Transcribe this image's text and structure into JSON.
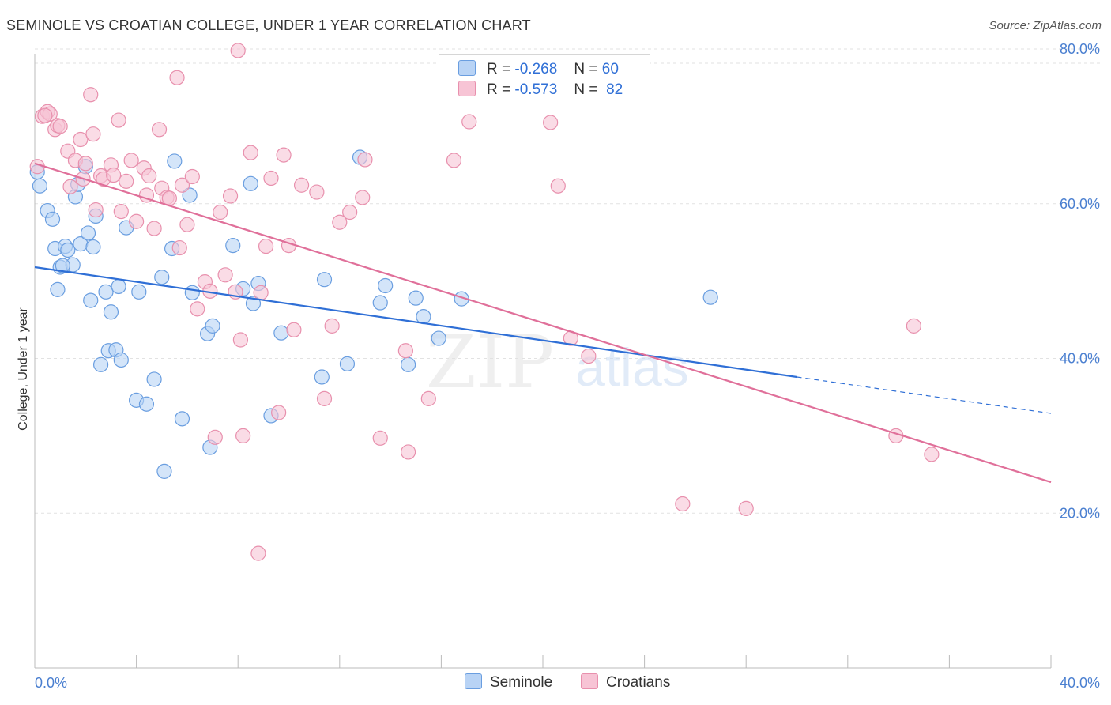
{
  "title": "SEMINOLE VS CROATIAN COLLEGE, UNDER 1 YEAR CORRELATION CHART",
  "source": "Source: ZipAtlas.com",
  "watermark": {
    "zip": "ZIP",
    "atlas": "atlas"
  },
  "colors": {
    "seminole_fill": "#b8d3f5",
    "seminole_stroke": "#6a9ee0",
    "seminole_line": "#2f6fd6",
    "croatians_fill": "#f7c4d5",
    "croatians_stroke": "#e890ad",
    "croatians_line": "#e0709a",
    "grid": "#e2e2e2",
    "tick_text": "#4a7fd0"
  },
  "legend": {
    "rows": [
      {
        "r_label": "R =",
        "r_value": "-0.268",
        "n_label": "N =",
        "n_value": "60"
      },
      {
        "r_label": "R =",
        "r_value": "-0.573",
        "n_label": "N =",
        "n_value": "82"
      }
    ]
  },
  "bottom_legend": [
    "Seminole",
    "Croatians"
  ],
  "chart_data": {
    "type": "scatter",
    "ylabel": "College, Under 1 year",
    "xlim": [
      0,
      40
    ],
    "ylim": [
      0,
      80
    ],
    "x_tick_labels": [
      "0.0%",
      "40.0%"
    ],
    "y_ticks": [
      20,
      40,
      60,
      80
    ],
    "y_tick_labels": [
      "20.0%",
      "40.0%",
      "60.0%",
      "80.0%"
    ],
    "grid": true,
    "legend_position": "top-center",
    "series": [
      {
        "name": "Seminole",
        "points": [
          [
            0.2,
            62.3
          ],
          [
            0.5,
            59.1
          ],
          [
            0.7,
            58.0
          ],
          [
            0.8,
            54.2
          ],
          [
            0.9,
            48.9
          ],
          [
            1.0,
            51.8
          ],
          [
            1.2,
            54.5
          ],
          [
            1.3,
            54.0
          ],
          [
            1.5,
            52.1
          ],
          [
            1.6,
            60.9
          ],
          [
            1.7,
            62.5
          ],
          [
            1.8,
            54.8
          ],
          [
            2.0,
            64.8
          ],
          [
            2.1,
            56.2
          ],
          [
            2.2,
            47.5
          ],
          [
            2.3,
            54.4
          ],
          [
            2.4,
            58.4
          ],
          [
            2.6,
            39.2
          ],
          [
            2.8,
            48.6
          ],
          [
            2.9,
            41.0
          ],
          [
            3.0,
            46.0
          ],
          [
            3.2,
            41.1
          ],
          [
            3.3,
            49.3
          ],
          [
            3.4,
            39.8
          ],
          [
            3.6,
            56.9
          ],
          [
            4.0,
            34.6
          ],
          [
            4.1,
            48.6
          ],
          [
            4.4,
            34.1
          ],
          [
            4.7,
            37.3
          ],
          [
            5.0,
            50.5
          ],
          [
            5.1,
            25.4
          ],
          [
            5.4,
            54.2
          ],
          [
            5.5,
            65.5
          ],
          [
            5.8,
            32.2
          ],
          [
            6.1,
            61.1
          ],
          [
            6.2,
            48.5
          ],
          [
            6.8,
            43.2
          ],
          [
            6.9,
            28.5
          ],
          [
            7.0,
            44.2
          ],
          [
            7.8,
            54.6
          ],
          [
            8.2,
            49.0
          ],
          [
            8.5,
            62.6
          ],
          [
            8.6,
            47.1
          ],
          [
            8.8,
            49.7
          ],
          [
            9.3,
            32.6
          ],
          [
            9.7,
            43.3
          ],
          [
            11.3,
            37.6
          ],
          [
            11.4,
            50.2
          ],
          [
            12.3,
            39.3
          ],
          [
            12.8,
            66.0
          ],
          [
            13.6,
            47.2
          ],
          [
            13.8,
            49.4
          ],
          [
            14.7,
            39.2
          ],
          [
            15.0,
            47.8
          ],
          [
            15.3,
            45.4
          ],
          [
            15.9,
            42.6
          ],
          [
            16.8,
            47.7
          ],
          [
            26.6,
            47.9
          ],
          [
            0.1,
            64.1
          ],
          [
            1.1,
            52.0
          ]
        ]
      },
      {
        "name": "Croatians",
        "points": [
          [
            0.1,
            64.8
          ],
          [
            0.3,
            71.3
          ],
          [
            0.5,
            71.9
          ],
          [
            0.6,
            71.6
          ],
          [
            0.8,
            69.6
          ],
          [
            0.9,
            70.1
          ],
          [
            1.0,
            70.0
          ],
          [
            1.3,
            66.8
          ],
          [
            1.4,
            62.2
          ],
          [
            1.6,
            65.6
          ],
          [
            1.8,
            68.3
          ],
          [
            2.0,
            65.2
          ],
          [
            2.2,
            74.1
          ],
          [
            2.3,
            69.0
          ],
          [
            2.4,
            59.2
          ],
          [
            2.6,
            63.6
          ],
          [
            2.7,
            63.2
          ],
          [
            3.0,
            65.0
          ],
          [
            3.1,
            63.7
          ],
          [
            3.3,
            70.8
          ],
          [
            3.4,
            59.0
          ],
          [
            3.6,
            62.9
          ],
          [
            3.8,
            65.6
          ],
          [
            4.0,
            57.7
          ],
          [
            4.3,
            64.6
          ],
          [
            4.4,
            61.1
          ],
          [
            4.5,
            63.6
          ],
          [
            4.7,
            56.8
          ],
          [
            4.9,
            69.6
          ],
          [
            5.0,
            62.0
          ],
          [
            5.2,
            60.8
          ],
          [
            5.3,
            60.7
          ],
          [
            5.6,
            76.3
          ],
          [
            5.7,
            54.3
          ],
          [
            5.8,
            62.4
          ],
          [
            6.0,
            57.3
          ],
          [
            6.2,
            63.5
          ],
          [
            6.4,
            46.4
          ],
          [
            6.7,
            49.9
          ],
          [
            6.9,
            48.7
          ],
          [
            7.1,
            29.8
          ],
          [
            7.3,
            58.9
          ],
          [
            7.5,
            50.8
          ],
          [
            7.7,
            61.0
          ],
          [
            7.9,
            48.6
          ],
          [
            8.0,
            79.8
          ],
          [
            8.1,
            42.4
          ],
          [
            8.2,
            30.0
          ],
          [
            8.5,
            66.6
          ],
          [
            8.8,
            14.8
          ],
          [
            8.9,
            48.5
          ],
          [
            9.1,
            54.5
          ],
          [
            9.3,
            63.3
          ],
          [
            9.6,
            33.0
          ],
          [
            9.8,
            66.3
          ],
          [
            10.0,
            54.6
          ],
          [
            10.2,
            43.7
          ],
          [
            10.5,
            62.4
          ],
          [
            11.1,
            61.5
          ],
          [
            11.4,
            34.8
          ],
          [
            11.7,
            44.2
          ],
          [
            12.0,
            57.6
          ],
          [
            12.4,
            58.9
          ],
          [
            12.9,
            60.8
          ],
          [
            13.0,
            65.7
          ],
          [
            13.6,
            29.7
          ],
          [
            14.6,
            41.0
          ],
          [
            14.7,
            27.9
          ],
          [
            15.5,
            34.8
          ],
          [
            16.5,
            65.6
          ],
          [
            17.1,
            70.6
          ],
          [
            20.3,
            70.5
          ],
          [
            20.6,
            62.3
          ],
          [
            21.1,
            42.6
          ],
          [
            21.8,
            40.3
          ],
          [
            25.5,
            21.2
          ],
          [
            28.0,
            20.6
          ],
          [
            33.9,
            30.0
          ],
          [
            34.6,
            44.2
          ],
          [
            35.3,
            27.6
          ],
          [
            0.4,
            71.4
          ],
          [
            1.9,
            63.2
          ]
        ]
      }
    ],
    "trend_lines": [
      {
        "name": "Seminole",
        "solid": [
          [
            0,
            51.8
          ],
          [
            30,
            37.6
          ]
        ],
        "dashed": [
          [
            30,
            37.6
          ],
          [
            40,
            32.9
          ]
        ]
      },
      {
        "name": "Croatians",
        "solid": [
          [
            0,
            65.2
          ],
          [
            40,
            24.0
          ]
        ]
      }
    ]
  }
}
